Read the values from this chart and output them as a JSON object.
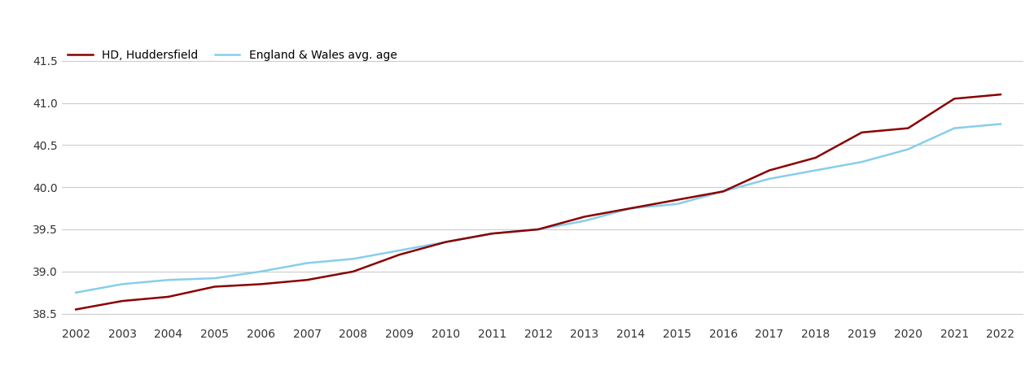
{
  "years": [
    2002,
    2003,
    2004,
    2005,
    2006,
    2007,
    2008,
    2009,
    2010,
    2011,
    2012,
    2013,
    2014,
    2015,
    2016,
    2017,
    2018,
    2019,
    2020,
    2021,
    2022
  ],
  "huddersfield": [
    38.55,
    38.65,
    38.7,
    38.82,
    38.85,
    38.9,
    39.0,
    39.2,
    39.35,
    39.45,
    39.5,
    39.65,
    39.75,
    39.85,
    39.95,
    40.2,
    40.35,
    40.65,
    40.7,
    41.05,
    41.1
  ],
  "england_wales": [
    38.75,
    38.85,
    38.9,
    38.92,
    39.0,
    39.1,
    39.15,
    39.25,
    39.35,
    39.45,
    39.5,
    39.6,
    39.75,
    39.8,
    39.95,
    40.1,
    40.2,
    40.3,
    40.45,
    40.7,
    40.75
  ],
  "huddersfield_color": "#8B0000",
  "england_wales_color": "#87CEEB",
  "huddersfield_label": "HD, Huddersfield",
  "england_wales_label": "England & Wales avg. age",
  "ylim": [
    38.4,
    41.7
  ],
  "yticks": [
    38.5,
    39.0,
    39.5,
    40.0,
    40.5,
    41.0,
    41.5
  ],
  "background_color": "#ffffff",
  "grid_color": "#cccccc",
  "line_width": 1.8,
  "legend_fontsize": 10,
  "tick_fontsize": 10
}
